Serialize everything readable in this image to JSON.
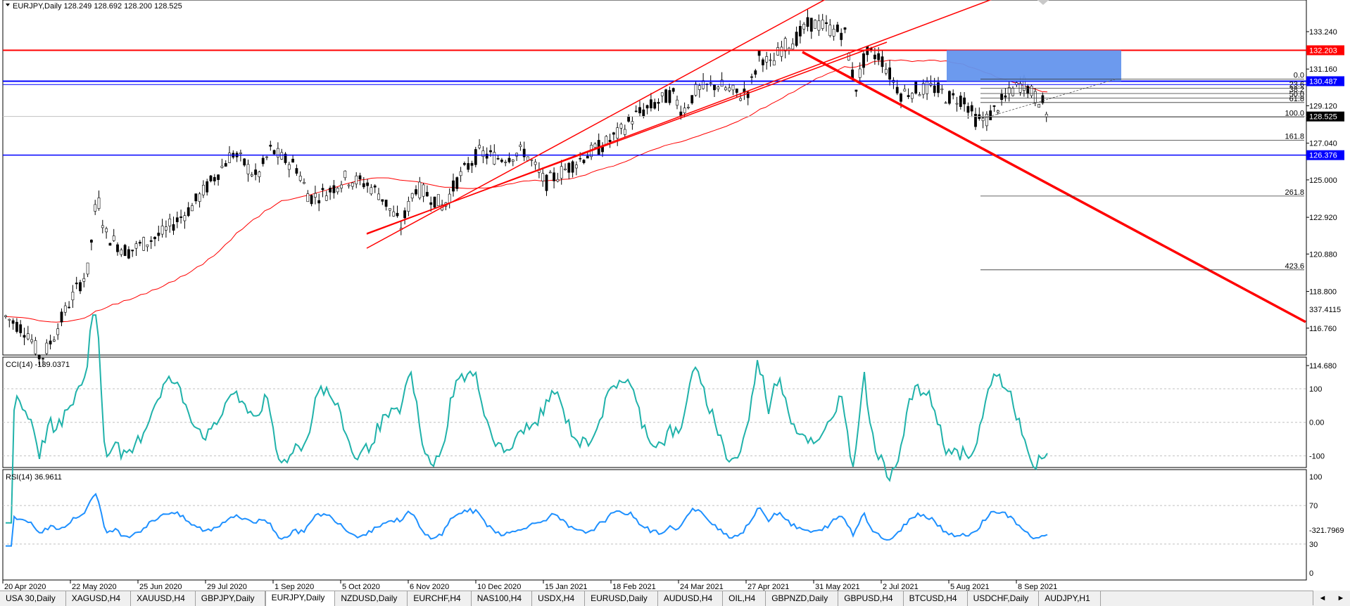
{
  "main_pane": {
    "header": "EURJPY,Daily  128.249 128.692 128.200 128.525",
    "price_scale": [
      "133.240",
      "131.160",
      "129.120",
      "127.040",
      "125.000",
      "122.920",
      "120.880",
      "118.800",
      "116.760",
      "114.680"
    ],
    "price_tags": [
      {
        "text": "132.203",
        "price": 132.203,
        "bg": "#ff0000"
      },
      {
        "text": "130.487",
        "price": 130.487,
        "bg": "#0000ff"
      },
      {
        "text": "128.525",
        "price": 128.525,
        "bg": "#000000"
      },
      {
        "text": "126.376",
        "price": 126.376,
        "bg": "#0000ff"
      }
    ],
    "fib_levels": [
      {
        "label": "0.0",
        "price": 130.6
      },
      {
        "label": "23.6",
        "price": 130.1
      },
      {
        "label": "38.2",
        "price": 129.8
      },
      {
        "label": "50.0",
        "price": 129.55
      },
      {
        "label": "61.8",
        "price": 129.3
      },
      {
        "label": "100.0",
        "price": 128.5
      },
      {
        "label": "161.8",
        "price": 127.2
      },
      {
        "label": "261.8",
        "price": 124.1
      },
      {
        "label": "423.6",
        "price": 120.0
      }
    ]
  },
  "cci_pane": {
    "header": "CCI(14) -139.0371",
    "scale": [
      {
        "text": "337.4115",
        "value": 337.4115
      },
      {
        "text": "100",
        "value": 100
      },
      {
        "text": "0.00",
        "value": 0
      },
      {
        "text": "-100",
        "value": -100
      },
      {
        "text": "-321.7969",
        "value": -321.7969
      }
    ]
  },
  "rsi_pane": {
    "header": "RSI(14) 36.9611",
    "scale": [
      {
        "text": "100",
        "value": 100
      },
      {
        "text": "70",
        "value": 70
      },
      {
        "text": "30",
        "value": 30
      },
      {
        "text": "0",
        "value": 0
      }
    ]
  },
  "time_axis": [
    "20 Apr 2020",
    "22 May 2020",
    "25 Jun 2020",
    "29 Jul 2020",
    "1 Sep 2020",
    "5 Oct 2020",
    "6 Nov 2020",
    "10 Dec 2020",
    "15 Jan 2021",
    "18 Feb 2021",
    "24 Mar 2021",
    "27 Apr 2021",
    "31 May 2021",
    "2 Jul 2021",
    "5 Aug 2021",
    "8 Sep 2021"
  ],
  "tabs": [
    "USA 30,Daily",
    "XAGUSD,H4",
    "XAUUSD,H4",
    "GBPJPY,Daily",
    "EURJPY,Daily",
    "NZDUSD,Daily",
    "EURCHF,H4",
    "NAS100,H4",
    "USDX,H4",
    "EURUSD,Daily",
    "AUDUSD,H4",
    "OIL,H4",
    "GBPNZD,Daily",
    "GBPUSD,H4",
    "BTCUSD,H4",
    "USDCHF,Daily",
    "AUDJPY,H1"
  ],
  "active_tab": "EURJPY,Daily",
  "colors": {
    "bull": "#000000",
    "bear": "#000000",
    "ma": "#ff0000",
    "cci": "#20b2aa",
    "rsi": "#1e90ff",
    "channel": "#ff0000",
    "support": "#0000ff",
    "zone": "#6495ed"
  }
}
